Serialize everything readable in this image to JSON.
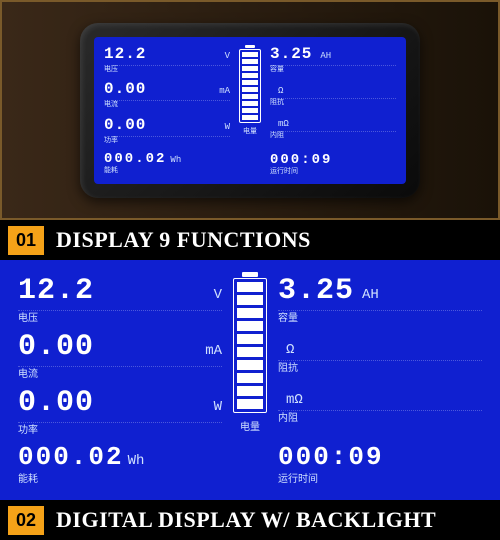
{
  "colors": {
    "screen_bg": "#1020d0",
    "accent": "#f5a218",
    "panel_border": "#7a5a2a",
    "text": "#ffffff"
  },
  "battery": {
    "segments": 10,
    "label": "电量"
  },
  "left": {
    "voltage": {
      "value": "12.2",
      "unit": "V",
      "cn": "电压"
    },
    "current": {
      "value": "0.00",
      "unit": "mA",
      "cn": "电流"
    },
    "power": {
      "value": "0.00",
      "unit": "W",
      "cn": "功率"
    },
    "energy": {
      "value": "000.02",
      "unit": "Wh",
      "cn": "能耗"
    }
  },
  "right": {
    "capacity": {
      "value": "3.25",
      "unit": "AH",
      "cn": "容量"
    },
    "impedance": {
      "value": "",
      "unit": "Ω",
      "cn": "阻抗"
    },
    "resistance": {
      "value": "",
      "unit": "mΩ",
      "cn": "内阻"
    },
    "runtime": {
      "value": "000:09",
      "unit": "",
      "cn": "运行时间"
    }
  },
  "section1": {
    "num": "01",
    "title": "DISPLAY 9 FUNCTIONS"
  },
  "section2": {
    "num": "02",
    "title": "DIGITAL DISPLAY W/ BACKLIGHT"
  }
}
